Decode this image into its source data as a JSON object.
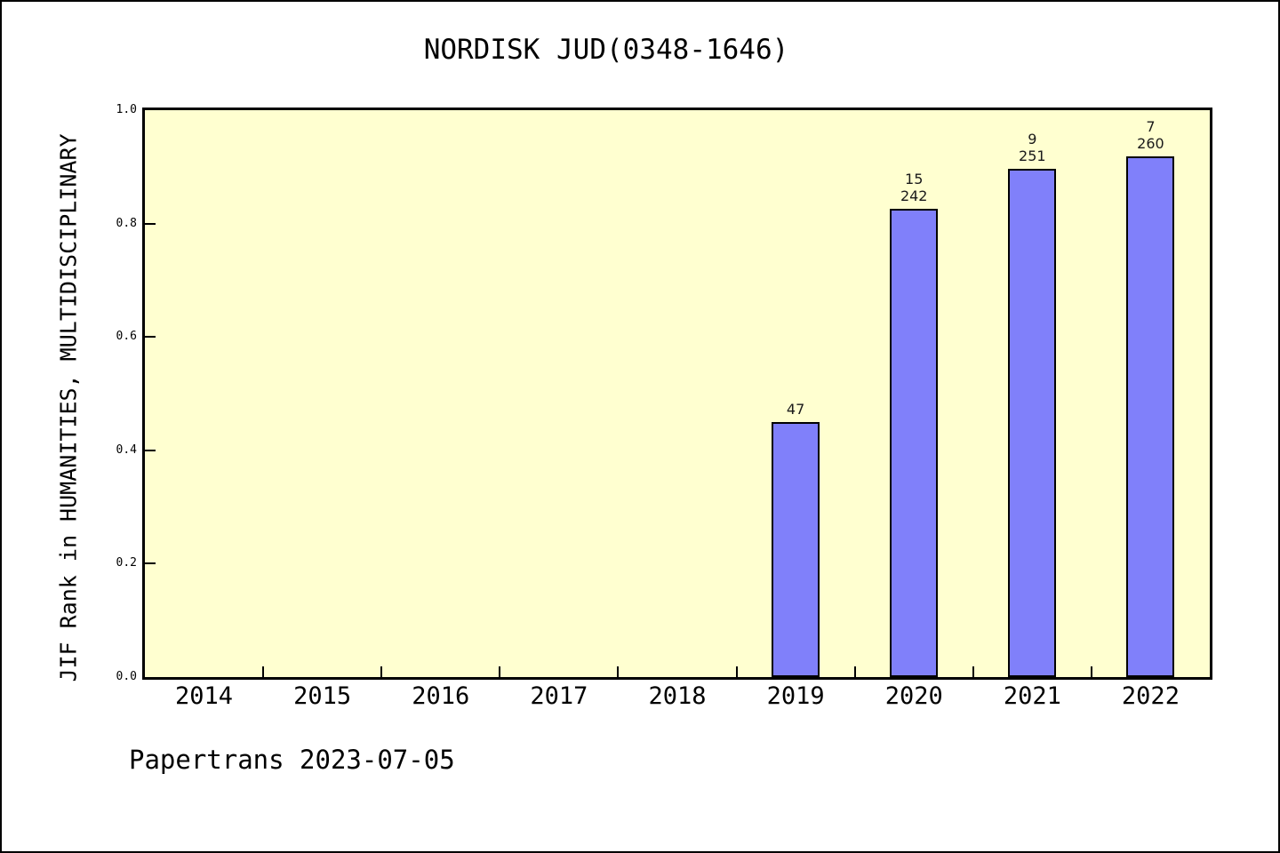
{
  "footer": "Papertrans 2023-07-05",
  "chart_data": {
    "type": "bar",
    "title": "NORDISK JUD(0348-1646)",
    "xlabel": "",
    "ylabel": "JIF Rank in HUMANITIES, MULTIDISCIPLINARY",
    "categories": [
      "2014",
      "2015",
      "2016",
      "2017",
      "2018",
      "2019",
      "2020",
      "2021",
      "2022"
    ],
    "values": [
      null,
      null,
      null,
      null,
      null,
      0.45,
      0.826,
      0.896,
      0.918
    ],
    "bar_labels": [
      [],
      [],
      [],
      [],
      [],
      [
        "47"
      ],
      [
        "15",
        "242"
      ],
      [
        "9",
        "251"
      ],
      [
        "7",
        "260"
      ]
    ],
    "ylim": [
      0,
      1
    ],
    "yticks": [
      "0.0",
      "0.2",
      "0.4",
      "0.6",
      "0.8",
      "1.0"
    ],
    "grid": false,
    "legend_position": "none",
    "colors": {
      "bar_fill": "#8080FA",
      "bar_border": "#000000",
      "plot_background": "#FFFFD0",
      "axis": "#000000",
      "text": "#000000"
    }
  }
}
